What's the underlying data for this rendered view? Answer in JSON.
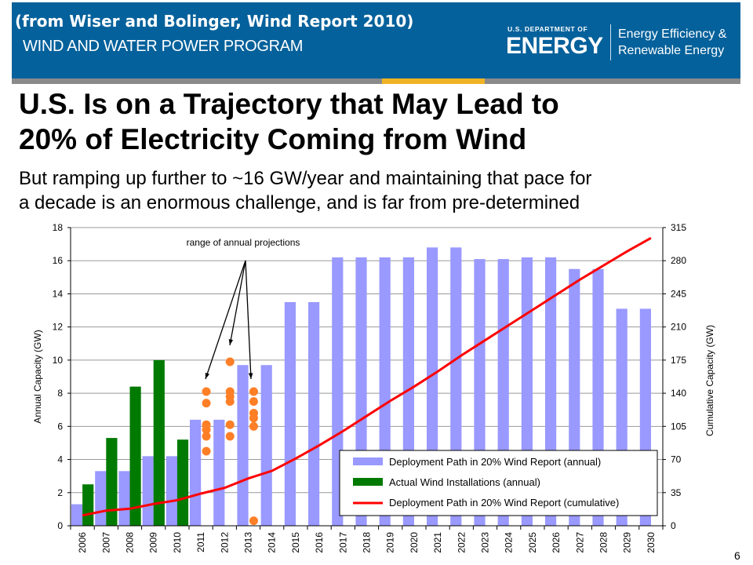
{
  "header": {
    "source_note": "(from Wiser and Bolinger, Wind Report 2010)",
    "program": "WIND AND WATER POWER PROGRAM",
    "logo_small": "U.S. DEPARTMENT OF",
    "logo_big": "ENERGY",
    "office_line1": "Energy Efficiency &",
    "office_line2": "Renewable Energy",
    "bar_color": "#04619b"
  },
  "slide": {
    "title_line1": "U.S. Is on a Trajectory that May Lead to",
    "title_line2": "20% of Electricity Coming from Wind",
    "subtitle_line1": "But ramping up further to ~16 GW/year and maintaining that pace for",
    "subtitle_line2": "a decade is an enormous challenge, and is far from pre-determined",
    "page_number": "6"
  },
  "chart_data": {
    "type": "bar",
    "categories": [
      "2006",
      "2007",
      "2008",
      "2009",
      "2010",
      "2011",
      "2012",
      "2013",
      "2014",
      "2015",
      "2016",
      "2017",
      "2018",
      "2019",
      "2020",
      "2021",
      "2022",
      "2023",
      "2024",
      "2025",
      "2026",
      "2027",
      "2028",
      "2029",
      "2030"
    ],
    "ylabel": "Annual Capacity (GW)",
    "ylim": [
      0,
      18
    ],
    "yticks": [
      "0",
      "2",
      "4",
      "6",
      "8",
      "10",
      "12",
      "14",
      "16",
      "18"
    ],
    "y2label": "Cumulative Capacity (GW)",
    "y2lim": [
      0,
      315
    ],
    "y2ticks": [
      "0",
      "35",
      "70",
      "105",
      "140",
      "175",
      "210",
      "245",
      "280",
      "315"
    ],
    "grid": true,
    "legend_position": "bottom-right",
    "annotation": "range of annual projections",
    "series": [
      {
        "name": "Deployment Path in 20% Wind Report (annual)",
        "type": "bar",
        "color": "#9999ff",
        "axis": "left",
        "values": [
          1.3,
          3.3,
          3.3,
          4.2,
          4.2,
          6.4,
          6.4,
          9.7,
          9.7,
          13.5,
          13.5,
          16.2,
          16.2,
          16.2,
          16.2,
          16.8,
          16.8,
          16.1,
          16.1,
          16.2,
          16.2,
          15.5,
          15.5,
          13.1,
          13.1
        ]
      },
      {
        "name": "Actual Wind Installations (annual)",
        "type": "bar",
        "color": "#007a00",
        "axis": "left",
        "values": [
          2.5,
          5.3,
          8.4,
          10.0,
          5.2,
          null,
          null,
          null,
          null,
          null,
          null,
          null,
          null,
          null,
          null,
          null,
          null,
          null,
          null,
          null,
          null,
          null,
          null,
          null,
          null
        ]
      },
      {
        "name": "Deployment Path in 20% Wind Report (cumulative)",
        "type": "line",
        "color": "#ff0000",
        "axis": "right",
        "values": [
          11,
          16,
          18,
          23,
          27,
          34,
          40,
          50,
          58,
          71,
          85,
          100,
          116,
          132,
          147,
          163,
          180,
          196,
          212,
          228,
          244,
          260,
          275,
          290,
          304
        ]
      }
    ],
    "projections": {
      "color": "#ff7f27",
      "points": [
        {
          "year": "2011",
          "values": [
            8.1,
            7.4,
            6.1,
            5.8,
            5.4,
            4.5
          ]
        },
        {
          "year": "2012",
          "values": [
            9.9,
            8.1,
            7.8,
            7.5,
            6.1,
            5.4
          ]
        },
        {
          "year": "2013",
          "values": [
            8.1,
            7.5,
            6.8,
            6.5,
            6.0,
            0.3
          ]
        }
      ]
    }
  }
}
